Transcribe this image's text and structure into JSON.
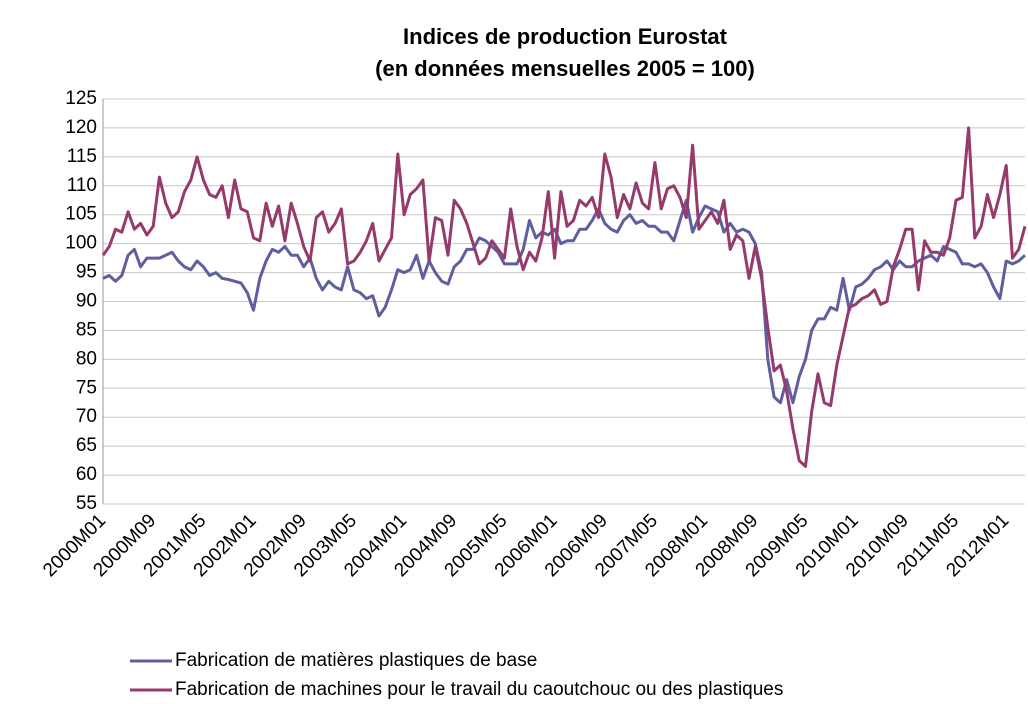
{
  "chart_data": {
    "type": "line",
    "title": "Indices de production Eurostat",
    "subtitle": "(en données mensuelles 2005 = 100)",
    "categories": [
      "2000M01",
      null,
      null,
      null,
      null,
      null,
      null,
      null,
      "2000M09",
      null,
      null,
      null,
      null,
      null,
      null,
      null,
      "2001M05",
      null,
      null,
      null,
      null,
      null,
      null,
      null,
      "2002M01",
      null,
      null,
      null,
      null,
      null,
      null,
      null,
      "2002M09",
      null,
      null,
      null,
      null,
      null,
      null,
      null,
      "2003M05",
      null,
      null,
      null,
      null,
      null,
      null,
      null,
      "2004M01",
      null,
      null,
      null,
      null,
      null,
      null,
      null,
      "2004M09",
      null,
      null,
      null,
      null,
      null,
      null,
      null,
      "2005M05",
      null,
      null,
      null,
      null,
      null,
      null,
      null,
      "2006M01",
      null,
      null,
      null,
      null,
      null,
      null,
      null,
      "2006M09",
      null,
      null,
      null,
      null,
      null,
      null,
      null,
      "2007M05",
      null,
      null,
      null,
      null,
      null,
      null,
      null,
      "2008M01",
      null,
      null,
      null,
      null,
      null,
      null,
      null,
      "2008M09",
      null,
      null,
      null,
      null,
      null,
      null,
      null,
      "2009M05",
      null,
      null,
      null,
      null,
      null,
      null,
      null,
      "2010M01",
      null,
      null,
      null,
      null,
      null,
      null,
      null,
      "2010M09",
      null,
      null,
      null,
      null,
      null,
      null,
      null,
      "2011M05",
      null,
      null,
      null,
      null,
      null,
      null,
      null,
      "2012M01",
      null,
      null,
      null
    ],
    "series": [
      {
        "name": "Fabrication de matières plastiques de base",
        "color": "#5f5f9f",
        "values": [
          94,
          94.5,
          93.5,
          94.5,
          98,
          99,
          96,
          97.5,
          97.5,
          97.5,
          98,
          98.5,
          97,
          96,
          95.5,
          97,
          96,
          94.5,
          95,
          94,
          93.8,
          93.5,
          93.2,
          91.5,
          88.5,
          94,
          97,
          99,
          98.5,
          99.5,
          98,
          98,
          96,
          97.5,
          94,
          92,
          93.5,
          92.5,
          92,
          96,
          92,
          91.5,
          90.5,
          91,
          87.5,
          89,
          92,
          95.5,
          95,
          95.5,
          98,
          94,
          97,
          95,
          93.5,
          93,
          96,
          97,
          99,
          99,
          101,
          100.5,
          99.5,
          98.5,
          96.5,
          96.5,
          96.5,
          99,
          104,
          101,
          102,
          101.5,
          102.5,
          100,
          100.5,
          100.5,
          102.5,
          102.5,
          104,
          106,
          103.5,
          102.5,
          102,
          104,
          105,
          103.5,
          104,
          103,
          103,
          102,
          102,
          100.5,
          104,
          107.5,
          102,
          104.5,
          106.5,
          106,
          105.5,
          102,
          103.5,
          102,
          102.5,
          102,
          100,
          95,
          80,
          73.5,
          72.5,
          76.5,
          72.5,
          77,
          80,
          85,
          87,
          87,
          89,
          88.5,
          94,
          88.5,
          92.5,
          93,
          94,
          95.5,
          96,
          97,
          95.5,
          97,
          96,
          96,
          97,
          97.5,
          98,
          97,
          99.5,
          99,
          98.5,
          96.5,
          96.5,
          96,
          96.5,
          95,
          92.5,
          90.5,
          97,
          96.5,
          97,
          98
        ]
      },
      {
        "name": "Fabrication de machines pour le travail du caoutchouc ou des plastiques",
        "color": "#953a6b",
        "values": [
          98,
          99.5,
          102.5,
          102,
          105.5,
          102.5,
          103.5,
          101.5,
          103,
          111.5,
          107,
          104.5,
          105.5,
          109,
          111,
          115,
          111,
          108.5,
          108,
          110,
          104.5,
          111,
          106,
          105.5,
          101,
          100.5,
          107,
          103,
          106.5,
          100.5,
          107,
          103.5,
          99.5,
          97,
          104.5,
          105.5,
          102,
          103.5,
          106,
          96.5,
          97,
          98.5,
          100.5,
          103.5,
          97,
          99,
          101,
          115.5,
          105,
          108.5,
          109.5,
          111,
          97,
          104.5,
          104,
          98,
          107.5,
          106,
          103.5,
          100,
          96.5,
          97.5,
          100.5,
          99,
          97.5,
          106,
          99.5,
          95.5,
          98.5,
          97,
          101,
          109,
          97.5,
          109,
          103,
          104,
          107.5,
          106.5,
          108,
          104.5,
          115.5,
          111.5,
          104.5,
          108.5,
          106,
          110.5,
          107,
          106,
          114,
          106,
          109.5,
          110,
          108,
          104.5,
          117,
          102.5,
          104,
          105.5,
          103.5,
          107.5,
          99,
          101.5,
          100.5,
          94,
          99.5,
          94,
          85.5,
          78,
          79,
          74.5,
          68,
          62.5,
          61.5,
          71,
          77.5,
          72.5,
          72,
          79,
          84,
          89,
          89.5,
          90.5,
          91,
          92,
          89.5,
          90,
          96,
          99,
          102.5,
          102.5,
          92,
          100.5,
          98.5,
          98.5,
          98,
          101,
          107.5,
          108,
          120,
          101,
          103,
          108.5,
          104.5,
          108.5,
          113.5,
          97.5,
          99,
          103
        ]
      }
    ],
    "ylim": [
      55,
      125
    ],
    "yticks": [
      55,
      60,
      65,
      70,
      75,
      80,
      85,
      90,
      95,
      100,
      105,
      110,
      115,
      120,
      125
    ],
    "grid": true
  }
}
